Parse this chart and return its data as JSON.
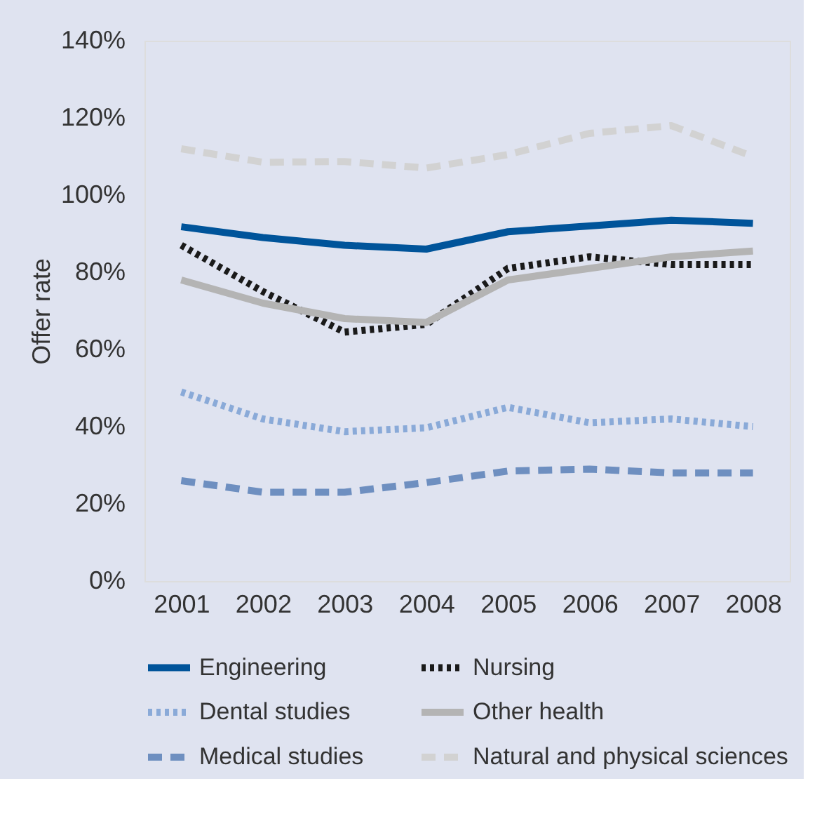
{
  "chart_data": {
    "type": "line",
    "ylabel": "Offer rate",
    "categories": [
      "2001",
      "2002",
      "2003",
      "2004",
      "2005",
      "2006",
      "2007",
      "2008"
    ],
    "series": [
      {
        "name": "Engineering",
        "color": "#00549a",
        "line_style": "solid",
        "values": [
          91.8,
          89,
          87,
          86,
          90.5,
          92,
          93.5,
          92.7
        ]
      },
      {
        "name": "Nursing",
        "color": "#1a1a1a",
        "line_style": "dotted",
        "values": [
          87,
          75,
          64.5,
          66.5,
          81,
          84,
          82,
          82
        ]
      },
      {
        "name": "Dental studies",
        "color": "#8aaad8",
        "line_style": "dotted",
        "values": [
          49,
          42,
          38.7,
          39.7,
          45,
          41,
          42,
          40
        ]
      },
      {
        "name": "Other health",
        "color": "#b4b4b4",
        "line_style": "solid",
        "values": [
          78,
          72,
          68,
          67,
          78,
          81,
          84,
          85.5
        ]
      },
      {
        "name": "Medical studies",
        "color": "#6e8fc0",
        "line_style": "dashed",
        "values": [
          26,
          23,
          23,
          25.5,
          28.5,
          29,
          28,
          28
        ]
      },
      {
        "name": "Natural and physical sciences",
        "color": "#d2d2d2",
        "line_style": "dashed",
        "values": [
          112,
          108.5,
          108.7,
          107,
          110.5,
          116,
          118,
          110
        ]
      }
    ],
    "ylim": [
      0,
      140
    ],
    "yticks": [
      {
        "value": 0,
        "label": "0%"
      },
      {
        "value": 20,
        "label": "20%"
      },
      {
        "value": 40,
        "label": "40%"
      },
      {
        "value": 60,
        "label": "60%"
      },
      {
        "value": 80,
        "label": "80%"
      },
      {
        "value": 100,
        "label": "100%"
      },
      {
        "value": 120,
        "label": "120%"
      },
      {
        "value": 140,
        "label": "140%"
      }
    ],
    "grid": false,
    "legend": "bottom",
    "marker": "none"
  }
}
